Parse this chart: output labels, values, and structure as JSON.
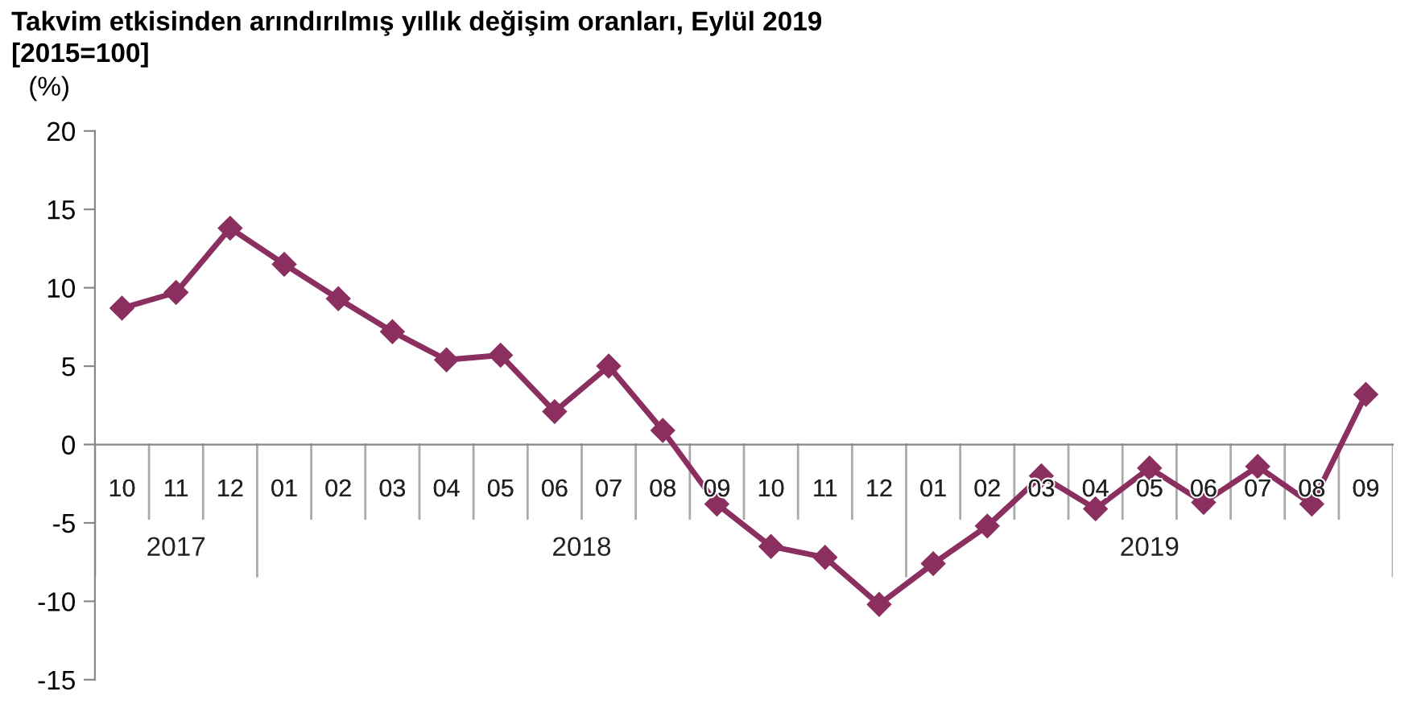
{
  "chart_data": {
    "type": "line",
    "title": "Takvim etkisinden arındırılmış yıllık değişim oranları, Eylül 2019",
    "subtitle": "[2015=100]",
    "ylabel": "(%)",
    "categories": [
      "10",
      "11",
      "12",
      "01",
      "02",
      "03",
      "04",
      "05",
      "06",
      "07",
      "08",
      "09",
      "10",
      "11",
      "12",
      "01",
      "02",
      "03",
      "04",
      "05",
      "06",
      "07",
      "08",
      "09"
    ],
    "annotations": [
      "2017",
      "2018",
      "2019"
    ],
    "series": [
      {
        "color": "#8b2f60",
        "values": [
          8.7,
          9.7,
          13.8,
          11.5,
          9.3,
          7.2,
          5.4,
          5.7,
          2.1,
          5.0,
          0.9,
          -3.8,
          -6.5,
          -7.2,
          -10.2,
          -7.6,
          -5.2,
          -2.0,
          -4.1,
          -1.5,
          -3.7,
          -1.4,
          -3.8,
          3.2
        ]
      }
    ],
    "ylim": [
      -15,
      20
    ],
    "yticks": [
      -15,
      -10,
      -5,
      0,
      5,
      10,
      15,
      20
    ],
    "marker": "diamond",
    "line_style": "solid",
    "grid": false,
    "legend": false
  }
}
